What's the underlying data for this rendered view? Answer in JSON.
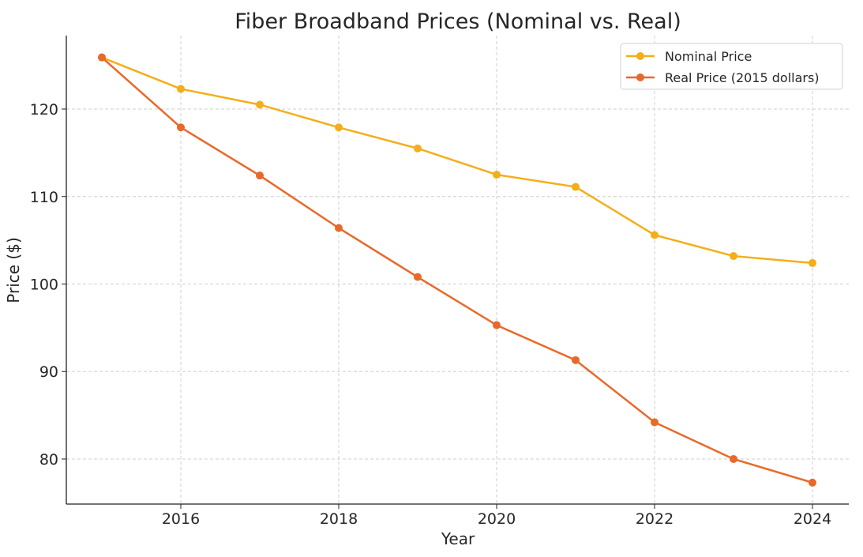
{
  "chart_data": {
    "type": "line",
    "title": "Fiber Broadband Prices (Nominal vs. Real)",
    "xlabel": "Year",
    "ylabel": "Price ($)",
    "x": [
      2015,
      2016,
      2017,
      2018,
      2019,
      2020,
      2021,
      2022,
      2023,
      2024
    ],
    "xlim": [
      2014.55,
      2024.46
    ],
    "ylim": [
      74.85,
      128.4
    ],
    "xticks": [
      2016,
      2018,
      2020,
      2022,
      2024
    ],
    "yticks": [
      80,
      90,
      100,
      110,
      120
    ],
    "grid": true,
    "legend_position": "top-right",
    "series": [
      {
        "name": "Nominal Price",
        "color": "#f4ae1a",
        "values": [
          125.9,
          122.3,
          120.5,
          117.9,
          115.5,
          112.5,
          111.1,
          105.6,
          103.2,
          102.4
        ]
      },
      {
        "name": "Real Price (2015 dollars)",
        "color": "#e8692a",
        "values": [
          125.9,
          117.9,
          112.4,
          106.4,
          100.8,
          95.3,
          91.3,
          84.2,
          80.0,
          77.3
        ]
      }
    ]
  }
}
